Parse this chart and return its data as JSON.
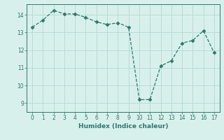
{
  "x": [
    0,
    1,
    2,
    3,
    4,
    5,
    6,
    7,
    8,
    9,
    10,
    11,
    12,
    13,
    14,
    15,
    16,
    17
  ],
  "y": [
    13.3,
    13.7,
    14.25,
    14.05,
    14.05,
    13.85,
    13.6,
    13.45,
    13.55,
    13.3,
    9.2,
    9.2,
    11.1,
    11.4,
    12.4,
    12.55,
    13.1,
    11.85
  ],
  "line_color": "#2a7a6a",
  "marker": "D",
  "marker_size": 2.5,
  "bg_color": "#d8f0ec",
  "grid_color": "#b8dcd6",
  "xlabel": "Humidex (Indice chaleur)",
  "ylim": [
    8.5,
    14.6
  ],
  "xlim": [
    -0.5,
    17.5
  ],
  "yticks": [
    9,
    10,
    11,
    12,
    13,
    14
  ],
  "xticks": [
    0,
    1,
    2,
    3,
    4,
    5,
    6,
    7,
    8,
    9,
    10,
    11,
    12,
    13,
    14,
    15,
    16,
    17
  ]
}
